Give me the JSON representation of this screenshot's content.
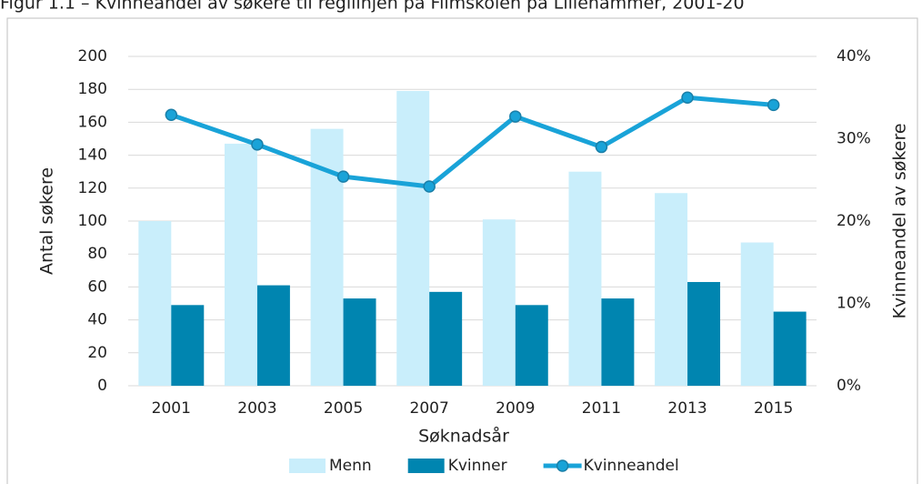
{
  "chart_data": {
    "type": "bar_line",
    "title": "Figur 1.1 – Kvinneandel av søkere til regilinjen på Filmskolen på Lillehammer, 2001-20",
    "x_label": "Søknadsår",
    "y_label": "Antal søkere",
    "y2_label": "Kvinneandel av søkere",
    "categories": [
      "2001",
      "2003",
      "2005",
      "2007",
      "2009",
      "2011",
      "2013",
      "2015"
    ],
    "series": [
      {
        "name": "Menn",
        "color": "#c9eefb",
        "values": [
          100,
          147,
          156,
          179,
          101,
          130,
          117,
          87
        ]
      },
      {
        "name": "Kvinner",
        "color": "#0085b0",
        "values": [
          49,
          61,
          53,
          57,
          49,
          53,
          63,
          45
        ]
      },
      {
        "name": "Kvinneandel",
        "color": "#19a3d8",
        "axis": "y2",
        "values": [
          32.9,
          29.3,
          25.4,
          24.2,
          32.7,
          29.0,
          35.0,
          34.1
        ]
      }
    ],
    "ylim": [
      0,
      200
    ],
    "yticks": [
      0,
      20,
      40,
      60,
      80,
      100,
      120,
      140,
      160,
      180,
      200
    ],
    "y2lim": [
      0,
      40
    ],
    "y2ticks": [
      {
        "value": 0,
        "label": "0%"
      },
      {
        "value": 10,
        "label": "10%"
      },
      {
        "value": 20,
        "label": "20%"
      },
      {
        "value": 30,
        "label": "30%"
      },
      {
        "value": 40,
        "label": "40%"
      }
    ],
    "grid": true
  }
}
